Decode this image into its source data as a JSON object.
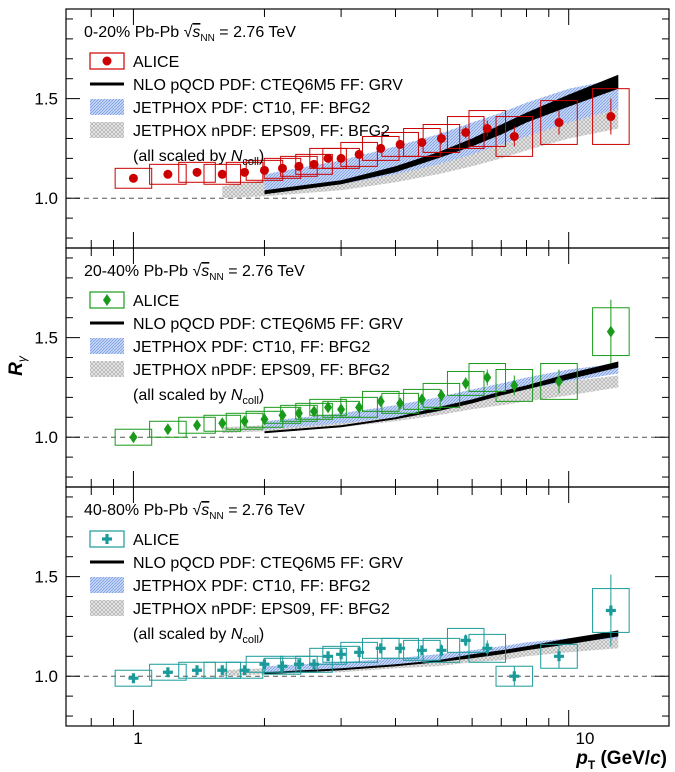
{
  "figure": {
    "ylabel": "R",
    "ylabel_sub": "γ",
    "xlabel_main": "p",
    "xlabel_sub": "T",
    "xlabel_unit_pre": " (GeV/",
    "xlabel_unit_c": "c",
    "xlabel_unit_post": ")",
    "x_tick_labels": [
      "1",
      "10"
    ]
  },
  "legend_common": {
    "alice": "ALICE",
    "nlo": "NLO pQCD PDF: CTEQ6M5 FF: GRV",
    "jetphox_ct10": "JETPHOX PDF: CT10, FF: BFG2",
    "jetphox_eps09": "JETPHOX nPDF: EPS09, FF: BFG2",
    "scaled_pre": "(all scaled by ",
    "scaled_n": "N",
    "scaled_sub": "coll",
    "scaled_post": ")"
  },
  "energy_label": {
    "sqrt": "√",
    "s": "s",
    "sub": "NN",
    "value": " = 2.76 TeV"
  },
  "colors": {
    "alice_0_20": "#cc0000",
    "alice_20_40": "#1a9a1a",
    "alice_40_80": "#1a9a9a",
    "nlo_band": "#000000",
    "ct10_band": "#7a9ee6",
    "eps09_band": "#b8b8b8"
  },
  "chart_data": [
    {
      "type": "scatter",
      "panel_label": "0-20% Pb-Pb",
      "marker": "circle",
      "x_scale": "log",
      "xlim": [
        0.7,
        17
      ],
      "ylim": [
        0.75,
        1.95
      ],
      "y_ticks": [
        1.0,
        1.5
      ],
      "reference_line": 1.0,
      "series": [
        {
          "name": "ALICE",
          "x": [
            1.0,
            1.2,
            1.4,
            1.6,
            1.8,
            2.0,
            2.2,
            2.4,
            2.6,
            2.8,
            3.0,
            3.3,
            3.7,
            4.1,
            4.6,
            5.1,
            5.8,
            6.5,
            7.5,
            9.5,
            12.5
          ],
          "y": [
            1.1,
            1.12,
            1.13,
            1.12,
            1.13,
            1.14,
            1.15,
            1.16,
            1.17,
            1.2,
            1.2,
            1.22,
            1.25,
            1.27,
            1.28,
            1.3,
            1.33,
            1.35,
            1.31,
            1.38,
            1.41
          ],
          "stat_err": [
            0.01,
            0.01,
            0.01,
            0.01,
            0.01,
            0.01,
            0.01,
            0.01,
            0.01,
            0.01,
            0.01,
            0.02,
            0.02,
            0.02,
            0.02,
            0.03,
            0.03,
            0.04,
            0.05,
            0.06,
            0.09
          ],
          "sys_err": [
            0.05,
            0.05,
            0.05,
            0.05,
            0.05,
            0.05,
            0.05,
            0.05,
            0.05,
            0.05,
            0.05,
            0.06,
            0.06,
            0.06,
            0.07,
            0.07,
            0.08,
            0.09,
            0.1,
            0.11,
            0.14
          ]
        },
        {
          "name": "NLO pQCD PDF: CTEQ6M5 FF: GRV",
          "x": [
            2.0,
            3.0,
            4.0,
            5.0,
            6.0,
            7.0,
            8.0,
            10.0,
            13.0
          ],
          "y_low": [
            1.02,
            1.07,
            1.13,
            1.2,
            1.26,
            1.32,
            1.38,
            1.46,
            1.55
          ],
          "y_high": [
            1.04,
            1.09,
            1.16,
            1.23,
            1.3,
            1.37,
            1.43,
            1.52,
            1.62
          ]
        },
        {
          "name": "JETPHOX PDF: CT10, FF: BFG2",
          "x": [
            2.0,
            3.0,
            4.0,
            5.0,
            6.0,
            7.0,
            8.0,
            10.0,
            13.0
          ],
          "y_low": [
            1.03,
            1.07,
            1.12,
            1.17,
            1.22,
            1.27,
            1.31,
            1.38,
            1.45
          ],
          "y_high": [
            1.12,
            1.19,
            1.26,
            1.32,
            1.38,
            1.43,
            1.48,
            1.55,
            1.6
          ]
        },
        {
          "name": "JETPHOX nPDF: EPS09, FF: BFG2",
          "x": [
            1.6,
            2.0,
            3.0,
            4.0,
            5.0,
            6.0,
            7.0,
            8.0,
            10.0,
            13.0
          ],
          "y_low": [
            1.0,
            1.01,
            1.04,
            1.08,
            1.12,
            1.16,
            1.2,
            1.24,
            1.3,
            1.35
          ],
          "y_high": [
            1.06,
            1.09,
            1.15,
            1.21,
            1.27,
            1.32,
            1.37,
            1.41,
            1.48,
            1.54
          ]
        }
      ]
    },
    {
      "type": "scatter",
      "panel_label": "20-40% Pb-Pb",
      "marker": "diamond",
      "x_scale": "log",
      "xlim": [
        0.7,
        17
      ],
      "ylim": [
        0.75,
        1.95
      ],
      "y_ticks": [
        1.0,
        1.5
      ],
      "reference_line": 1.0,
      "series": [
        {
          "name": "ALICE",
          "x": [
            1.0,
            1.2,
            1.4,
            1.6,
            1.8,
            2.0,
            2.2,
            2.4,
            2.6,
            2.8,
            3.0,
            3.3,
            3.7,
            4.1,
            4.6,
            5.1,
            5.8,
            6.5,
            7.5,
            9.5,
            12.5
          ],
          "y": [
            1.0,
            1.04,
            1.06,
            1.07,
            1.08,
            1.09,
            1.11,
            1.12,
            1.13,
            1.15,
            1.14,
            1.15,
            1.18,
            1.17,
            1.19,
            1.21,
            1.27,
            1.3,
            1.26,
            1.28,
            1.53
          ],
          "stat_err": [
            0.01,
            0.01,
            0.01,
            0.01,
            0.01,
            0.01,
            0.01,
            0.01,
            0.01,
            0.01,
            0.01,
            0.02,
            0.02,
            0.02,
            0.02,
            0.03,
            0.03,
            0.04,
            0.05,
            0.06,
            0.16
          ],
          "sys_err": [
            0.04,
            0.04,
            0.04,
            0.04,
            0.04,
            0.04,
            0.04,
            0.04,
            0.04,
            0.04,
            0.04,
            0.05,
            0.05,
            0.05,
            0.05,
            0.06,
            0.06,
            0.07,
            0.08,
            0.09,
            0.12
          ]
        },
        {
          "name": "NLO pQCD PDF: CTEQ6M5 FF: GRV",
          "x": [
            2.0,
            3.0,
            4.0,
            5.0,
            6.0,
            7.0,
            8.0,
            10.0,
            13.0
          ],
          "y_low": [
            1.02,
            1.05,
            1.09,
            1.13,
            1.17,
            1.21,
            1.24,
            1.29,
            1.35
          ],
          "y_high": [
            1.03,
            1.06,
            1.1,
            1.15,
            1.19,
            1.23,
            1.26,
            1.32,
            1.38
          ]
        },
        {
          "name": "JETPHOX PDF: CT10, FF: BFG2",
          "x": [
            2.0,
            3.0,
            4.0,
            5.0,
            6.0,
            7.0,
            8.0,
            10.0,
            13.0
          ],
          "y_low": [
            1.04,
            1.07,
            1.1,
            1.14,
            1.18,
            1.21,
            1.24,
            1.28,
            1.32
          ],
          "y_high": [
            1.08,
            1.12,
            1.16,
            1.2,
            1.24,
            1.27,
            1.3,
            1.34,
            1.37
          ]
        },
        {
          "name": "JETPHOX nPDF: EPS09, FF: BFG2",
          "x": [
            1.6,
            2.0,
            3.0,
            4.0,
            5.0,
            6.0,
            7.0,
            8.0,
            10.0,
            13.0
          ],
          "y_low": [
            1.02,
            1.03,
            1.05,
            1.08,
            1.11,
            1.14,
            1.16,
            1.18,
            1.21,
            1.25
          ],
          "y_high": [
            1.05,
            1.06,
            1.09,
            1.13,
            1.16,
            1.19,
            1.22,
            1.24,
            1.28,
            1.31
          ]
        }
      ]
    },
    {
      "type": "scatter",
      "panel_label": "40-80% Pb-Pb",
      "marker": "cross",
      "x_scale": "log",
      "xlim": [
        0.7,
        17
      ],
      "ylim": [
        0.75,
        1.95
      ],
      "y_ticks": [
        1.0,
        1.5
      ],
      "reference_line": 1.0,
      "series": [
        {
          "name": "ALICE",
          "x": [
            1.0,
            1.2,
            1.4,
            1.6,
            1.8,
            2.0,
            2.2,
            2.4,
            2.6,
            2.8,
            3.0,
            3.3,
            3.7,
            4.1,
            4.6,
            5.1,
            5.8,
            6.5,
            7.5,
            9.5,
            12.5
          ],
          "y": [
            0.99,
            1.02,
            1.03,
            1.03,
            1.03,
            1.06,
            1.05,
            1.06,
            1.06,
            1.1,
            1.11,
            1.12,
            1.14,
            1.14,
            1.13,
            1.13,
            1.18,
            1.14,
            1.0,
            1.1,
            1.33
          ],
          "stat_err": [
            0.01,
            0.01,
            0.01,
            0.01,
            0.01,
            0.01,
            0.01,
            0.01,
            0.01,
            0.01,
            0.01,
            0.02,
            0.02,
            0.02,
            0.02,
            0.03,
            0.03,
            0.04,
            0.05,
            0.06,
            0.18
          ],
          "sys_err": [
            0.04,
            0.04,
            0.04,
            0.04,
            0.04,
            0.04,
            0.04,
            0.04,
            0.04,
            0.04,
            0.04,
            0.05,
            0.05,
            0.05,
            0.05,
            0.06,
            0.06,
            0.07,
            0.05,
            0.06,
            0.11
          ]
        },
        {
          "name": "NLO pQCD PDF: CTEQ6M5 FF: GRV",
          "x": [
            2.0,
            3.0,
            4.0,
            5.0,
            6.0,
            7.0,
            8.0,
            10.0,
            13.0
          ],
          "y_low": [
            1.01,
            1.03,
            1.05,
            1.07,
            1.09,
            1.11,
            1.13,
            1.16,
            1.2
          ],
          "y_high": [
            1.02,
            1.04,
            1.06,
            1.08,
            1.11,
            1.13,
            1.15,
            1.19,
            1.23
          ]
        },
        {
          "name": "JETPHOX PDF: CT10, FF: BFG2",
          "x": [
            2.0,
            3.0,
            4.0,
            5.0,
            6.0,
            7.0,
            8.0,
            10.0,
            13.0
          ],
          "y_low": [
            1.02,
            1.04,
            1.06,
            1.08,
            1.1,
            1.12,
            1.14,
            1.17,
            1.19
          ],
          "y_high": [
            1.05,
            1.07,
            1.09,
            1.11,
            1.13,
            1.15,
            1.17,
            1.19,
            1.21
          ]
        },
        {
          "name": "JETPHOX nPDF: EPS09, FF: BFG2",
          "x": [
            1.6,
            2.0,
            3.0,
            4.0,
            5.0,
            6.0,
            7.0,
            8.0,
            10.0,
            13.0
          ],
          "y_low": [
            1.0,
            1.01,
            1.02,
            1.04,
            1.05,
            1.07,
            1.08,
            1.1,
            1.12,
            1.14
          ],
          "y_high": [
            1.03,
            1.04,
            1.06,
            1.08,
            1.1,
            1.12,
            1.13,
            1.15,
            1.17,
            1.19
          ]
        }
      ]
    }
  ]
}
